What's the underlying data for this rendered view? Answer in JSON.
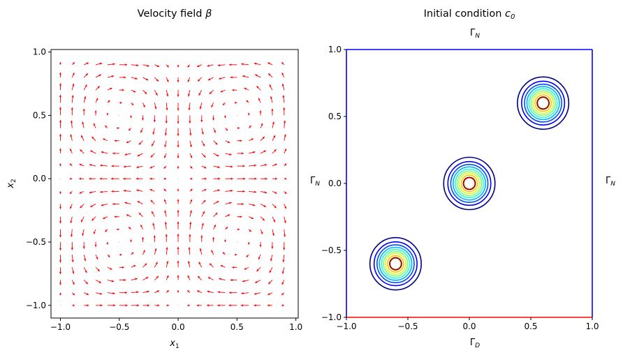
{
  "chart_data": [
    {
      "type": "quiver",
      "title": "Velocity field",
      "title_symbol": "β",
      "xlabel": "x",
      "xlabel_sub": "1",
      "ylabel": "x",
      "ylabel_sub": "2",
      "xlim": [
        -1.08,
        1.02
      ],
      "ylim": [
        -1.1,
        1.02
      ],
      "xticks": [
        -1.0,
        -0.5,
        0.0,
        0.5,
        1.0
      ],
      "yticks": [
        -1.0,
        -0.5,
        0.0,
        0.5,
        1.0
      ],
      "tick_labels": [
        "−1.0",
        "−0.5",
        "0.0",
        "0.5",
        "1.0"
      ],
      "grid": {
        "n": 20,
        "min": -1.0,
        "max": 0.9
      },
      "field": "u = sin(πx₁)·cos(πx₂), v = −cos(πx₁)·sin(πx₂)",
      "arrow_color": "#ff0000"
    },
    {
      "type": "contour",
      "title": "Initial condition",
      "title_symbol": "c",
      "title_sub": "0",
      "xlim": [
        -1.0,
        1.0
      ],
      "ylim": [
        -1.0,
        1.0
      ],
      "xticks": [
        -1.0,
        -0.5,
        0.0,
        0.5,
        1.0
      ],
      "yticks": [
        -1.0,
        -0.5,
        0.0,
        0.5,
        1.0
      ],
      "tick_labels": [
        "−1.0",
        "−0.5",
        "0.0",
        "0.5",
        "1.0"
      ],
      "centers": [
        [
          -0.6,
          -0.6
        ],
        [
          0.0,
          0.0
        ],
        [
          0.6,
          0.6
        ]
      ],
      "sigma": 0.09,
      "levels": [
        0.1,
        0.2,
        0.3,
        0.4,
        0.5,
        0.6,
        0.7,
        0.8,
        0.9,
        1.0
      ],
      "level_colors": [
        "#00007f",
        "#0000f1",
        "#004dff",
        "#00b1ff",
        "#29ffce",
        "#7dff7a",
        "#ceff29",
        "#ffc400",
        "#ff6800",
        "#f10800"
      ],
      "inner_color": "#7f0000",
      "boundary_labels": {
        "top": {
          "symbol": "Γ",
          "sub": "N",
          "color": "#0000ff"
        },
        "left": {
          "symbol": "Γ",
          "sub": "N",
          "color": "#0000ff"
        },
        "right": {
          "symbol": "Γ",
          "sub": "N",
          "color": "#0000ff"
        },
        "bottom": {
          "symbol": "Γ",
          "sub": "D",
          "color": "#ff0000"
        }
      },
      "boundary_colors": {
        "neumann": "#0000ff",
        "dirichlet": "#ff0000"
      }
    }
  ]
}
